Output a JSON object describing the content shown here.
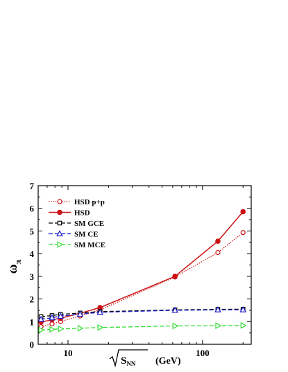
{
  "chart_data": {
    "type": "line",
    "xscale": "log",
    "xlim": [
      6,
      230
    ],
    "ylim": [
      0,
      7
    ],
    "yticks": [
      0,
      1,
      2,
      3,
      4,
      5,
      6,
      7
    ],
    "xticks_major": [
      10,
      100
    ],
    "ylabel": {
      "main": "ω",
      "sub": "π"
    },
    "xlabel": {
      "radicand_main": "S",
      "radicand_sub": "NN",
      "unit": "(GeV)"
    },
    "legend_position": "top-left",
    "series": [
      {
        "name": "HSD p+p",
        "color": "#cc1111",
        "line": "dotted",
        "marker": "circle-open",
        "x": [
          6.3,
          7.6,
          8.8,
          12.3,
          17.3,
          62.4,
          130,
          200
        ],
        "y": [
          0.78,
          0.9,
          1.0,
          1.25,
          1.52,
          2.97,
          4.05,
          4.93
        ]
      },
      {
        "name": "HSD",
        "color": "#cc1111",
        "line": "solid",
        "marker": "circle-filled",
        "x": [
          6.3,
          7.6,
          8.8,
          12.3,
          17.3,
          62.4,
          130,
          200
        ],
        "y": [
          0.98,
          1.08,
          1.15,
          1.37,
          1.62,
          3.0,
          4.55,
          5.85
        ]
      },
      {
        "name": "SM GCE",
        "color": "#000000",
        "line": "dashed",
        "marker": "square-open",
        "x": [
          6.3,
          7.6,
          8.8,
          12.3,
          17.3,
          62.4,
          130,
          200
        ],
        "y": [
          1.22,
          1.27,
          1.32,
          1.38,
          1.44,
          1.52,
          1.54,
          1.55
        ]
      },
      {
        "name": "SM CE",
        "color": "#1a1acc",
        "line": "dashed",
        "marker": "triangle-up-open",
        "x": [
          6.3,
          7.6,
          8.8,
          12.3,
          17.3,
          62.4,
          130,
          200
        ],
        "y": [
          1.1,
          1.17,
          1.24,
          1.33,
          1.41,
          1.5,
          1.52,
          1.52
        ]
      },
      {
        "name": "SM MCE",
        "color": "#33dd33",
        "line": "dashed",
        "marker": "triangle-right-open",
        "x": [
          6.3,
          7.6,
          8.8,
          12.3,
          17.3,
          62.4,
          130,
          200
        ],
        "y": [
          0.63,
          0.66,
          0.68,
          0.71,
          0.74,
          0.81,
          0.82,
          0.83
        ]
      }
    ]
  }
}
